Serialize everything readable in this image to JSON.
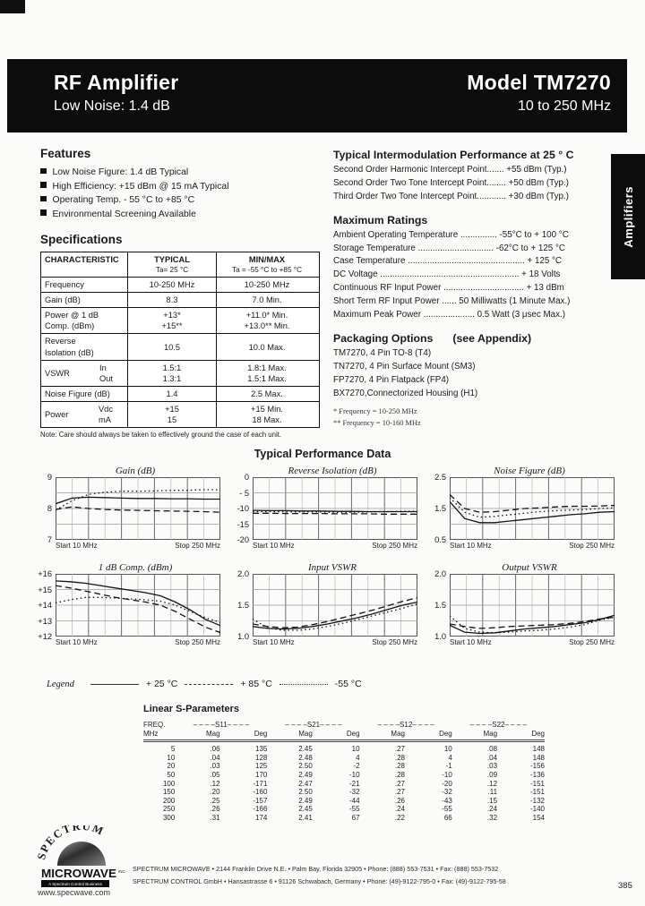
{
  "header": {
    "product": "RF Amplifier",
    "tagline": "Low Noise: 1.4 dB",
    "model": "Model TM7270",
    "freq_range": "10 to 250 MHz"
  },
  "side_tab": {
    "label": "Amplifiers"
  },
  "features": {
    "title": "Features",
    "items": [
      "Low Noise Figure: 1.4 dB Typical",
      "High Efficiency: +15 dBm @ 15 mA Typical",
      "Operating Temp. - 55 °C to +85 °C",
      "Environmental Screening Available"
    ]
  },
  "specifications": {
    "title": "Specifications",
    "header": {
      "c1": "CHARACTERISTIC",
      "c2a": "TYPICAL",
      "c2b": "Ta= 25 °C",
      "c3a": "MIN/MAX",
      "c3b": "Ta = -55 °C to +85 °C"
    },
    "rows": [
      {
        "label": [
          "Frequency"
        ],
        "sub": [],
        "typ": [
          "10-250 MHz"
        ],
        "mm": [
          "10-250 MHz"
        ]
      },
      {
        "label": [
          "Gain (dB)"
        ],
        "sub": [],
        "typ": [
          "8.3"
        ],
        "mm": [
          "7.0 Min."
        ]
      },
      {
        "label": [
          "Power @ 1 dB",
          "Comp. (dBm)"
        ],
        "sub": [],
        "typ": [
          "+13*",
          "+15**"
        ],
        "mm": [
          "+11.0* Min.",
          "+13.0** Min."
        ]
      },
      {
        "label": [
          "Reverse",
          "Isolation (dB)"
        ],
        "sub": [],
        "typ": [
          "",
          "10.5"
        ],
        "mm": [
          "",
          "10.0 Max."
        ]
      },
      {
        "label": [
          "VSWR"
        ],
        "sub": [
          "In",
          "Out"
        ],
        "typ": [
          "1.5:1",
          "1.3:1"
        ],
        "mm": [
          "1.8:1 Max.",
          "1.5:1 Max."
        ]
      },
      {
        "label": [
          "Noise Figure (dB)"
        ],
        "sub": [],
        "typ": [
          "1.4"
        ],
        "mm": [
          "2.5 Max."
        ]
      },
      {
        "label": [
          "Power"
        ],
        "sub": [
          "Vdc",
          "mA"
        ],
        "typ": [
          "+15",
          "15"
        ],
        "mm": [
          "+15 Min.",
          "18 Max."
        ]
      }
    ],
    "note": "Note: Care should always be taken to effectively ground the case of each unit."
  },
  "intermod": {
    "title": "Typical Intermodulation Performance at 25 ° C",
    "lines": [
      "Second Order Harmonic Intercept Point....... +55 dBm (Typ.)",
      "Second Order Two Tone Intercept Point........ +50 dBm (Typ.)",
      "Third Order Two Tone Intercept Point............ +30 dBm (Typ.)"
    ]
  },
  "max_ratings": {
    "title": "Maximum Ratings",
    "lines": [
      "Ambient Operating Temperature ............... -55°C to + 100 °C",
      "Storage Temperature ............................... -62°C to + 125 °C",
      "Case Temperature ................................................ + 125 °C",
      "DC Voltage ......................................................... + 18 Volts",
      "Continuous RF Input Power ................................. + 13 dBm",
      "Short Term RF Input Power ...... 50 Milliwatts (1 Minute Max.)",
      "Maximum Peak Power ..................... 0.5 Watt (3 μsec Max.)"
    ]
  },
  "packaging": {
    "title": "Packaging Options",
    "subtitle": "(see Appendix)",
    "lines": [
      "TM7270, 4 Pin TO-8 (T4)",
      "TN7270, 4 Pin Surface Mount (SM3)",
      "FP7270, 4 Pin Flatpack (FP4)",
      "BX7270,Connectorized Housing (H1)"
    ],
    "footnotes": [
      "* Frequency = 10-250 MHz",
      "** Frequency = 10-160 MHz"
    ]
  },
  "performance_title": "Typical Performance Data",
  "chart_data": [
    {
      "type": "line",
      "title": "Gain (dB)",
      "xstart": "Start 10 MHz",
      "xstop": "Stop 250 MHz",
      "ylim": [
        7,
        9
      ],
      "yticks": [
        "9",
        "8",
        "7"
      ],
      "series": [
        {
          "name": "+25 °C",
          "style": "solid",
          "values": [
            8.15,
            8.33,
            8.36,
            8.35,
            8.33,
            8.32,
            8.32,
            8.31,
            8.31,
            8.3,
            8.3
          ]
        },
        {
          "name": "+85 °C",
          "style": "dashed",
          "values": [
            7.97,
            8.05,
            8.0,
            7.97,
            7.95,
            7.94,
            7.93,
            7.92,
            7.91,
            7.9,
            7.88
          ]
        },
        {
          "name": "-55 °C",
          "style": "dotted",
          "values": [
            7.95,
            8.25,
            8.45,
            8.52,
            8.55,
            8.55,
            8.56,
            8.58,
            8.58,
            8.6,
            8.6
          ]
        }
      ]
    },
    {
      "type": "line",
      "title": "Reverse Isolation (dB)",
      "xstart": "Start 10 MHz",
      "xstop": "Stop 250 MHz",
      "ylim": [
        -20,
        0
      ],
      "yticks": [
        "0",
        "- 5",
        "-10",
        "-15",
        "-20"
      ],
      "series": [
        {
          "name": "+25 °C",
          "style": "solid",
          "values": [
            -10.6,
            -10.7,
            -10.7,
            -10.8,
            -10.8,
            -10.9,
            -10.9,
            -11.0,
            -11.0,
            -11.0,
            -11.0
          ]
        },
        {
          "name": "+85 °C",
          "style": "dashed",
          "values": [
            -11.5,
            -11.5,
            -11.6,
            -11.6,
            -11.6,
            -11.7,
            -11.7,
            -11.7,
            -11.8,
            -11.8,
            -11.8
          ]
        },
        {
          "name": "-55 °C",
          "style": "dotted",
          "values": [
            -11.0,
            -11.0,
            -11.1,
            -11.1,
            -11.1,
            -11.2,
            -11.2,
            -11.1,
            -11.0,
            -10.9,
            -10.9
          ]
        }
      ]
    },
    {
      "type": "line",
      "title": "Noise Figure (dB)",
      "xstart": "Start 10 MHz",
      "xstop": "Stop 250 MHz",
      "ylim": [
        0.5,
        2.5
      ],
      "yticks": [
        "2.5",
        "1.5",
        "0.5"
      ],
      "series": [
        {
          "name": "+25 °C",
          "style": "solid",
          "values": [
            1.72,
            1.18,
            1.05,
            1.05,
            1.1,
            1.15,
            1.2,
            1.25,
            1.3,
            1.33,
            1.38,
            1.4
          ]
        },
        {
          "name": "+85 °C",
          "style": "dashed",
          "values": [
            1.95,
            1.5,
            1.38,
            1.4,
            1.45,
            1.5,
            1.52,
            1.55,
            1.57,
            1.57,
            1.58,
            1.6
          ]
        },
        {
          "name": "-55 °C",
          "style": "dotted",
          "values": [
            1.85,
            1.38,
            1.22,
            1.25,
            1.3,
            1.35,
            1.4,
            1.43,
            1.45,
            1.47,
            1.5,
            1.52
          ]
        }
      ]
    },
    {
      "type": "line",
      "title": "1 dB Comp. (dBm)",
      "xstart": "Start 10 MHz",
      "xstop": "Stop 250 MHz",
      "ylim": [
        12,
        16
      ],
      "yticks": [
        "+16",
        "+15",
        "+14",
        "+13",
        "+12"
      ],
      "series": [
        {
          "name": "+25 °C",
          "style": "solid",
          "values": [
            15.55,
            15.5,
            15.4,
            15.25,
            15.1,
            14.95,
            14.8,
            14.6,
            14.2,
            13.7,
            13.1,
            12.7
          ]
        },
        {
          "name": "+85 °C",
          "style": "dashed",
          "values": [
            15.25,
            15.1,
            14.9,
            14.7,
            14.5,
            14.35,
            14.2,
            14.0,
            13.6,
            13.1,
            12.6,
            12.25
          ]
        },
        {
          "name": "-55 °C",
          "style": "dotted",
          "values": [
            14.15,
            14.35,
            14.5,
            14.5,
            14.45,
            14.4,
            14.35,
            14.25,
            14.0,
            13.6,
            13.2,
            12.9
          ]
        }
      ]
    },
    {
      "type": "line",
      "title": "Input VSWR",
      "xstart": "Start 10 MHz",
      "xstop": "Stop 250 MHz",
      "ylim": [
        1.0,
        2.0
      ],
      "yticks": [
        "2.0",
        "1.5",
        "1.0"
      ],
      "series": [
        {
          "name": "+25 °C",
          "style": "solid",
          "values": [
            1.16,
            1.13,
            1.12,
            1.13,
            1.16,
            1.2,
            1.25,
            1.3,
            1.36,
            1.43,
            1.5,
            1.55
          ]
        },
        {
          "name": "+85 °C",
          "style": "dashed",
          "values": [
            1.2,
            1.16,
            1.14,
            1.15,
            1.19,
            1.24,
            1.3,
            1.36,
            1.42,
            1.49,
            1.56,
            1.62
          ]
        },
        {
          "name": "-55 °C",
          "style": "dotted",
          "values": [
            1.28,
            1.14,
            1.1,
            1.1,
            1.12,
            1.16,
            1.21,
            1.27,
            1.33,
            1.39,
            1.45,
            1.52
          ]
        }
      ]
    },
    {
      "type": "line",
      "title": "Output VSWR",
      "xstart": "Start 10 MHz",
      "xstop": "Stop 250 MHz",
      "ylim": [
        1.0,
        2.0
      ],
      "yticks": [
        "2.0",
        "1.5",
        "1.0"
      ],
      "series": [
        {
          "name": "+25 °C",
          "style": "solid",
          "values": [
            1.18,
            1.07,
            1.05,
            1.06,
            1.09,
            1.12,
            1.14,
            1.16,
            1.19,
            1.22,
            1.27,
            1.34
          ]
        },
        {
          "name": "+85 °C",
          "style": "dashed",
          "values": [
            1.2,
            1.16,
            1.13,
            1.14,
            1.16,
            1.17,
            1.18,
            1.19,
            1.21,
            1.24,
            1.28,
            1.31
          ]
        },
        {
          "name": "-55 °C",
          "style": "dotted",
          "values": [
            1.33,
            1.13,
            1.07,
            1.06,
            1.07,
            1.09,
            1.1,
            1.12,
            1.15,
            1.19,
            1.26,
            1.31
          ]
        }
      ]
    }
  ],
  "legend": {
    "label": "Legend",
    "items": [
      {
        "line": "solid",
        "label": "+ 25 °C"
      },
      {
        "line": "dashed",
        "label": "+ 85 °C"
      },
      {
        "line": "dotted",
        "label": "-55 °C"
      }
    ]
  },
  "sparams": {
    "title": "Linear S-Parameters",
    "freq_header": [
      "FREQ.",
      "MHz"
    ],
    "groups": [
      "– – – –S11– – – –",
      "– – – –S21– – – –",
      "– – – –S12– – – –",
      "– – – –S22– – – –"
    ],
    "sub": [
      "Mag",
      "Deg"
    ],
    "rows": [
      [
        "5",
        ".06",
        "135",
        "2.45",
        "10",
        ".27",
        "10",
        ".08",
        "148"
      ],
      [
        "10",
        ".04",
        "128",
        "2.48",
        "4",
        ".28",
        "4",
        ".04",
        "148"
      ],
      [
        "20",
        ".03",
        "125",
        "2.50",
        "-2",
        ".28",
        "-1",
        ".03",
        "-156"
      ],
      [
        "50",
        ".05",
        "170",
        "2.49",
        "-10",
        ".28",
        "-10",
        ".09",
        "-136"
      ],
      [
        "100",
        ".12",
        "-171",
        "2.47",
        "-21",
        ".27",
        "-20",
        ".12",
        "-151"
      ],
      [
        "150",
        ".20",
        "-160",
        "2.50",
        "-32",
        ".27",
        "-32",
        ".11",
        "-151"
      ],
      [
        "200",
        ".25",
        "-157",
        "2.49",
        "-44",
        ".26",
        "-43",
        ".15",
        "-132"
      ],
      [
        "250",
        ".26",
        "-166",
        "2.45",
        "-55",
        ".24",
        "-55",
        ".24",
        "-140"
      ],
      [
        "300",
        ".31",
        "174",
        "2.41",
        "67",
        ".22",
        "66",
        ".32",
        "154"
      ]
    ]
  },
  "footer": {
    "logo": {
      "arc": "SPECTRUM",
      "name": "MICROWAVE",
      "inc": "INC.",
      "banner": "A Spectrum Control Business",
      "url": "www.specwave.com"
    },
    "line1": "SPECTRUM MICROWAVE  •  2144 Franklin Drive N.E.  •  Palm Bay, Florida 32905  •  Phone: (888) 553-7531  •  Fax: (888) 553-7532",
    "line2": "SPECTRUM CONTROL GmbH  •  Hansastrasse 6  •  91126 Schwabach, Germany  •  Phone: (49)-9122-795-0  •  Fax: (49)-9122-795-58",
    "page": "385"
  }
}
